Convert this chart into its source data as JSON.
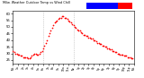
{
  "title": "Milw. Weather Outdoor Temp vs Wind Chill",
  "subtitle": "per Minute (24 Hours)",
  "bg_color": "#ffffff",
  "plot_bg": "#ffffff",
  "dot_color": "#ff0000",
  "dot_size": 1.5,
  "legend_blue": "#0000ff",
  "legend_red": "#ff0000",
  "ylim": [
    22,
    62
  ],
  "yticks": [
    25,
    30,
    35,
    40,
    45,
    50,
    55,
    60
  ],
  "vline_color": "#aaaaaa",
  "vlines": [
    0.25,
    0.5
  ],
  "temp_data": [
    [
      0.0,
      32
    ],
    [
      0.01,
      31
    ],
    [
      0.021,
      30
    ],
    [
      0.031,
      30
    ],
    [
      0.042,
      29
    ],
    [
      0.052,
      29
    ],
    [
      0.063,
      28
    ],
    [
      0.073,
      28
    ],
    [
      0.083,
      27
    ],
    [
      0.094,
      27
    ],
    [
      0.104,
      27
    ],
    [
      0.115,
      27
    ],
    [
      0.125,
      26
    ],
    [
      0.135,
      26
    ],
    [
      0.146,
      27
    ],
    [
      0.156,
      28
    ],
    [
      0.167,
      29
    ],
    [
      0.177,
      30
    ],
    [
      0.188,
      30
    ],
    [
      0.198,
      29
    ],
    [
      0.208,
      29
    ],
    [
      0.219,
      30
    ],
    [
      0.229,
      31
    ],
    [
      0.24,
      32
    ],
    [
      0.25,
      34
    ],
    [
      0.26,
      36
    ],
    [
      0.271,
      38
    ],
    [
      0.281,
      40
    ],
    [
      0.292,
      43
    ],
    [
      0.302,
      45
    ],
    [
      0.313,
      47
    ],
    [
      0.323,
      49
    ],
    [
      0.333,
      51
    ],
    [
      0.344,
      53
    ],
    [
      0.354,
      54
    ],
    [
      0.365,
      55
    ],
    [
      0.375,
      56
    ],
    [
      0.385,
      57
    ],
    [
      0.396,
      57
    ],
    [
      0.406,
      58
    ],
    [
      0.417,
      58
    ],
    [
      0.427,
      57
    ],
    [
      0.438,
      57
    ],
    [
      0.448,
      56
    ],
    [
      0.458,
      55
    ],
    [
      0.469,
      54
    ],
    [
      0.479,
      53
    ],
    [
      0.49,
      52
    ],
    [
      0.5,
      51
    ],
    [
      0.51,
      50
    ],
    [
      0.521,
      49
    ],
    [
      0.531,
      48
    ],
    [
      0.542,
      47
    ],
    [
      0.552,
      47
    ],
    [
      0.563,
      46
    ],
    [
      0.573,
      45
    ],
    [
      0.583,
      44
    ],
    [
      0.594,
      44
    ],
    [
      0.604,
      43
    ],
    [
      0.615,
      43
    ],
    [
      0.625,
      42
    ],
    [
      0.635,
      42
    ],
    [
      0.646,
      41
    ],
    [
      0.656,
      41
    ],
    [
      0.667,
      40
    ],
    [
      0.677,
      40
    ],
    [
      0.688,
      39
    ],
    [
      0.698,
      38
    ],
    [
      0.708,
      38
    ],
    [
      0.719,
      37
    ],
    [
      0.729,
      37
    ],
    [
      0.74,
      36
    ],
    [
      0.75,
      36
    ],
    [
      0.76,
      35
    ],
    [
      0.771,
      35
    ],
    [
      0.781,
      34
    ],
    [
      0.792,
      34
    ],
    [
      0.802,
      33
    ],
    [
      0.813,
      33
    ],
    [
      0.823,
      32
    ],
    [
      0.833,
      32
    ],
    [
      0.844,
      31
    ],
    [
      0.854,
      31
    ],
    [
      0.865,
      30
    ],
    [
      0.875,
      30
    ],
    [
      0.885,
      29
    ],
    [
      0.896,
      29
    ],
    [
      0.906,
      29
    ],
    [
      0.917,
      28
    ],
    [
      0.927,
      28
    ],
    [
      0.938,
      28
    ],
    [
      0.948,
      27
    ],
    [
      0.958,
      27
    ],
    [
      0.969,
      27
    ],
    [
      0.979,
      26
    ],
    [
      0.99,
      26
    ]
  ],
  "xtick_labels": [
    "Mn",
    "1a",
    "2a",
    "3a",
    "4a",
    "5a",
    "6a",
    "7a",
    "8a",
    "9a",
    "10a",
    "11a",
    "Nn",
    "1p",
    "2p",
    "3p",
    "4p",
    "5p",
    "6p",
    "7p",
    "8p",
    "9p",
    "10p",
    "11p",
    "Mn"
  ],
  "xtick_pos": [
    0.0,
    0.0417,
    0.0833,
    0.125,
    0.1667,
    0.2083,
    0.25,
    0.2917,
    0.3333,
    0.375,
    0.4167,
    0.4583,
    0.5,
    0.5417,
    0.5833,
    0.625,
    0.6667,
    0.7083,
    0.75,
    0.7917,
    0.8333,
    0.875,
    0.9167,
    0.9583,
    1.0
  ]
}
